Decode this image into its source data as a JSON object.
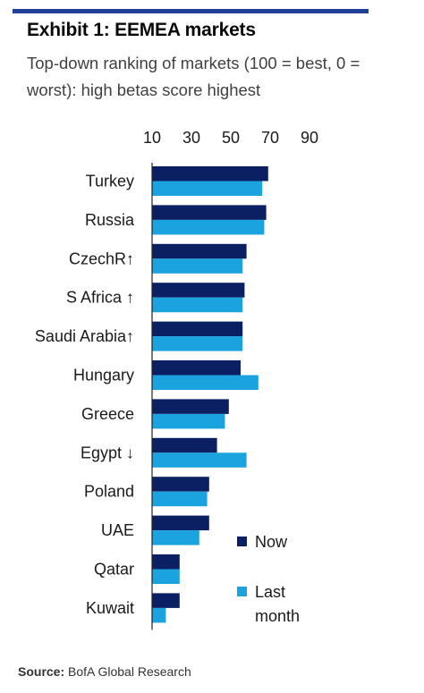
{
  "header": {
    "title": "Exhibit 1: EEMEA markets",
    "subtitle": "Top-down ranking of markets (100 = best, 0 = worst): high betas score highest"
  },
  "footer": {
    "source_label": "Source:",
    "source_text": "BofA Global Research"
  },
  "colors": {
    "rule": "#1f3f9a",
    "now": "#0b1f63",
    "last_month": "#1ba3e0"
  },
  "chart_data": {
    "type": "bar",
    "orientation": "horizontal",
    "categories": [
      "Turkey",
      "Russia",
      "CzechR↑",
      "S Africa ↑",
      "Saudi Arabia↑",
      "Hungary",
      "Greece",
      "Egypt ↓",
      "Poland",
      "UAE",
      "Qatar",
      "Kuwait"
    ],
    "series": [
      {
        "name": "Now",
        "values": [
          69,
          68,
          58,
          57,
          56,
          55,
          49,
          43,
          39,
          39,
          24,
          24
        ]
      },
      {
        "name": "Last month",
        "values": [
          66,
          67,
          56,
          56,
          56,
          64,
          47,
          58,
          38,
          34,
          24,
          17
        ]
      }
    ],
    "xticks": [
      10,
      30,
      50,
      70,
      90
    ],
    "xlim": [
      10,
      90
    ],
    "xaxis_position": "top",
    "legend": {
      "position": "bottom-right",
      "labels": [
        "Now",
        "Last\nmonth"
      ]
    },
    "grid": false
  }
}
